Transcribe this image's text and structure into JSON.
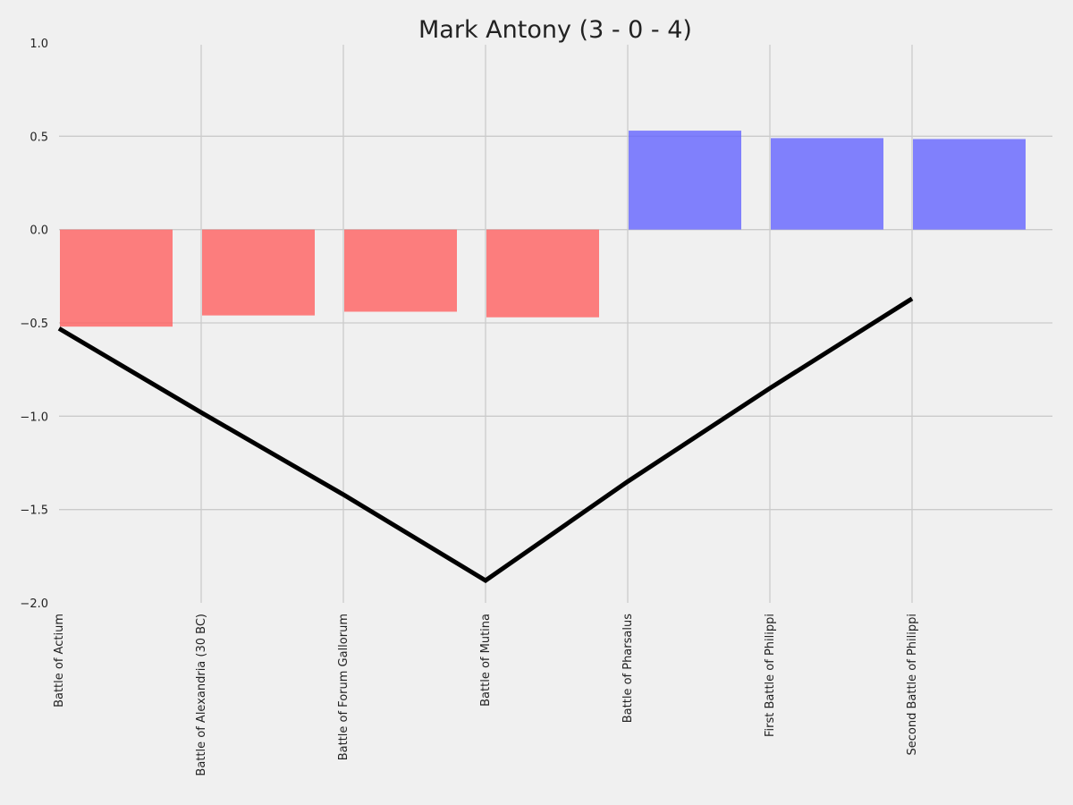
{
  "chart_data": {
    "type": "bar",
    "title": "Mark Antony (3 - 0 - 4)",
    "xlabel": "",
    "ylabel": "",
    "categories": [
      "Battle of Actium",
      "Battle of Alexandria (30 BC)",
      "Battle of Forum Gallorum",
      "Battle of Mutina",
      "Battle of Pharsalus",
      "First Battle of Philippi",
      "Second Battle of Philippi"
    ],
    "values": [
      -0.52,
      -0.46,
      -0.44,
      -0.47,
      0.53,
      0.49,
      0.485
    ],
    "cumulative_line": [
      -0.53,
      -0.98,
      -1.42,
      -1.88,
      -1.35,
      -0.85,
      -0.37
    ],
    "ylim": [
      -2.0,
      1.0
    ],
    "yticks": [
      1.0,
      0.5,
      0.0,
      -0.5,
      -1.0,
      -1.5,
      -2.0
    ],
    "ytick_labels": [
      "1.0",
      "0.5",
      "0.0",
      "−0.5",
      "−1.0",
      "−1.5",
      "−2.0"
    ],
    "grid": true,
    "colors": {
      "negative": "#ff5c5c",
      "positive": "#6060ff",
      "line": "#000000",
      "grid": "#cbcbcb",
      "background": "#f0f0f0"
    }
  }
}
